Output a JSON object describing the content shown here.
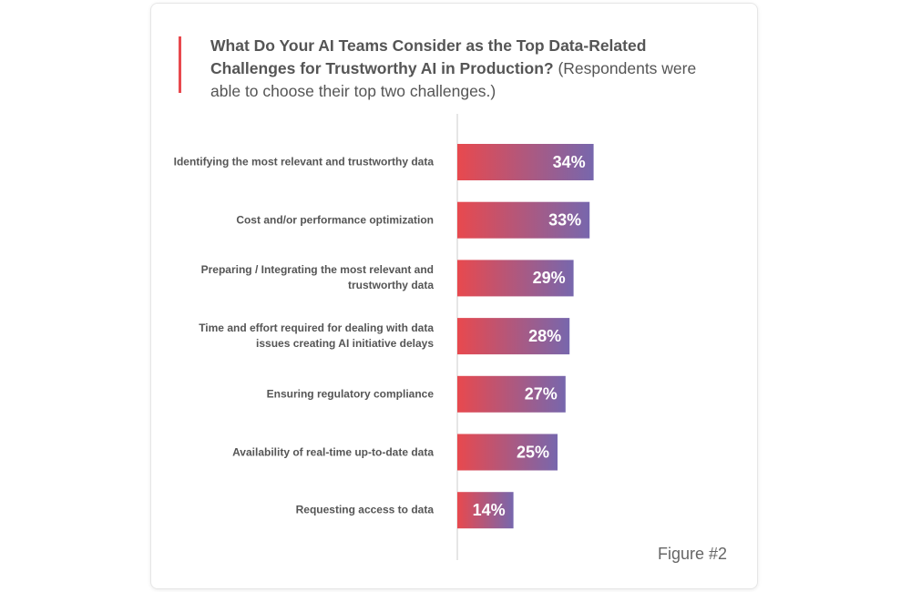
{
  "chart_data": {
    "type": "bar",
    "orientation": "horizontal",
    "title": "What Do Your AI Teams Consider as the Top Data-Related Challenges for Trustworthy AI in Production?",
    "subtitle": "(Respondents were able to choose their top two challenges.)",
    "categories": [
      "Identifying the most relevant and trustworthy data",
      "Cost and/or performance optimization",
      "Preparing / Integrating the most relevant and trustworthy data",
      "Time and effort required for dealing with data issues creating AI initiative delays",
      "Ensuring regulatory compliance",
      "Availability of real-time up-to-date data",
      "Requesting access to data"
    ],
    "values": [
      34,
      33,
      29,
      28,
      27,
      25,
      14
    ],
    "value_labels": [
      "34%",
      "33%",
      "29%",
      "28%",
      "27%",
      "25%",
      "14%"
    ],
    "colors": [
      "#e8494e",
      "#7767ad"
    ],
    "note": "Figure #2"
  }
}
